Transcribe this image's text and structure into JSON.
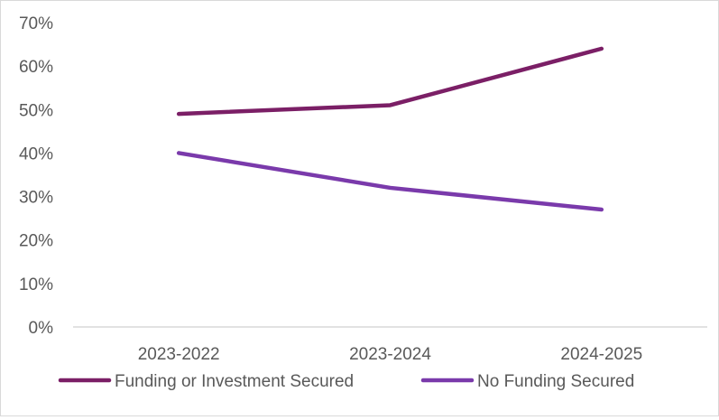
{
  "chart_data": {
    "type": "line",
    "categories": [
      "2023-2022",
      "2023-2024",
      "2024-2025"
    ],
    "series": [
      {
        "name": "Funding or Investment Secured",
        "values": [
          49,
          51,
          64
        ],
        "color": "#7b1f66"
      },
      {
        "name": "No Funding Secured",
        "values": [
          40,
          32,
          27
        ],
        "color": "#7a3aab"
      }
    ],
    "yticks": [
      "0%",
      "10%",
      "20%",
      "30%",
      "40%",
      "50%",
      "60%",
      "70%"
    ],
    "ylim": [
      0,
      70
    ],
    "ystep": 10,
    "grid": false,
    "legend_position": "bottom",
    "axis_color": "#d9d9d9",
    "text_color": "#595959"
  }
}
